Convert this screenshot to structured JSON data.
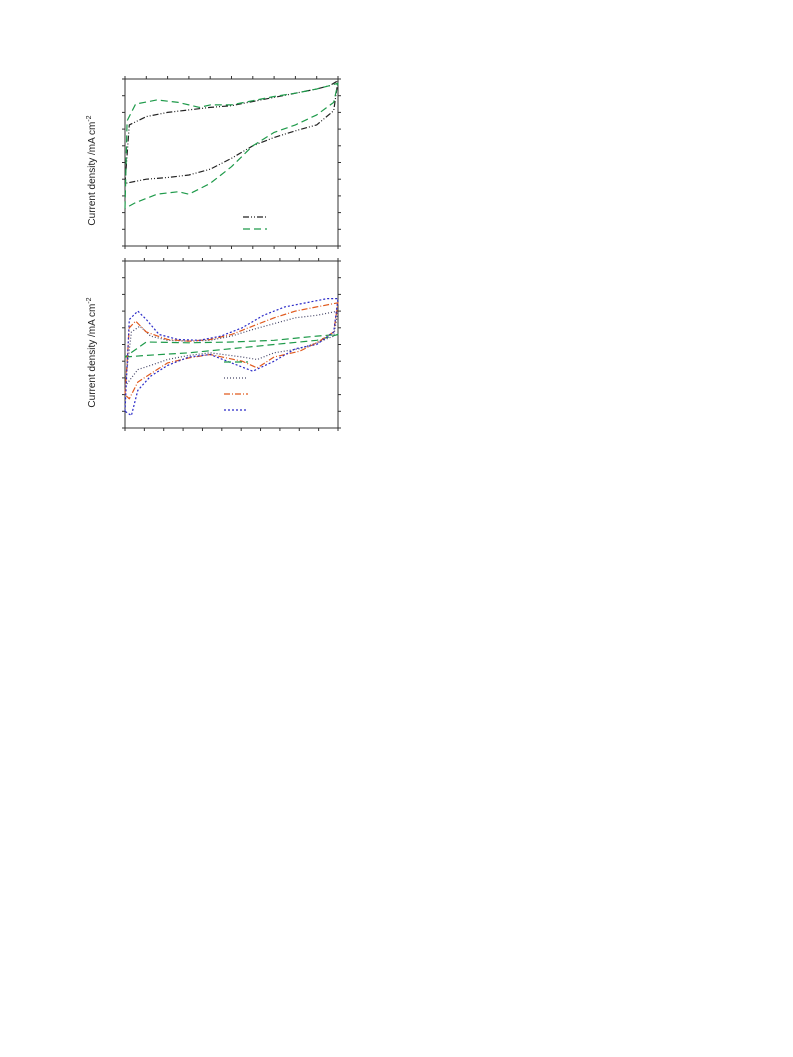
{
  "chart_data": [
    {
      "type": "line",
      "title": "",
      "xlabel": "",
      "ylabel": "Current density /mA cm",
      "ylabel_sup": "-2",
      "xlim": [
        0,
        1
      ],
      "ylim": [
        -1,
        1
      ],
      "x_ticks": 10,
      "y_ticks": 10,
      "grid": false,
      "legend_position": "bottom-right",
      "series": [
        {
          "color": "#222222",
          "dash": "6,2,1,2,1,2",
          "x": [
            0.0,
            0.02,
            0.1,
            0.2,
            0.3,
            0.4,
            0.5,
            0.6,
            0.7,
            0.8,
            0.9,
            0.96,
            1.0,
            0.98,
            0.9,
            0.8,
            0.7,
            0.6,
            0.5,
            0.4,
            0.3,
            0.2,
            0.1,
            0.0
          ],
          "y": [
            -0.25,
            0.45,
            0.55,
            0.6,
            0.63,
            0.66,
            0.68,
            0.73,
            0.78,
            0.83,
            0.88,
            0.92,
            0.98,
            0.62,
            0.45,
            0.38,
            0.3,
            0.2,
            0.05,
            -0.08,
            -0.15,
            -0.18,
            -0.2,
            -0.25
          ]
        },
        {
          "color": "#1e9a4a",
          "dash": "7,4",
          "x": [
            0.0,
            0.01,
            0.05,
            0.15,
            0.25,
            0.35,
            0.4,
            0.5,
            0.6,
            0.7,
            0.8,
            0.9,
            0.96,
            1.0,
            0.98,
            0.9,
            0.8,
            0.7,
            0.6,
            0.5,
            0.4,
            0.3,
            0.25,
            0.15,
            0.05,
            0.0
          ],
          "y": [
            -0.55,
            0.5,
            0.7,
            0.75,
            0.72,
            0.66,
            0.69,
            0.69,
            0.74,
            0.79,
            0.83,
            0.88,
            0.92,
            0.95,
            0.72,
            0.57,
            0.45,
            0.36,
            0.2,
            -0.05,
            -0.25,
            -0.38,
            -0.35,
            -0.38,
            -0.48,
            -0.55
          ]
        }
      ]
    },
    {
      "type": "line",
      "title": "",
      "xlabel": "",
      "ylabel": "Current density /mA cm",
      "ylabel_sup": "-2",
      "xlim": [
        0,
        1
      ],
      "ylim": [
        -1,
        1
      ],
      "x_ticks": 11,
      "y_ticks": 10,
      "grid": false,
      "legend_position": "bottom-right",
      "series": [
        {
          "color": "#1e9a4a",
          "dash": "7,4",
          "x": [
            0.0,
            0.1,
            0.3,
            0.5,
            0.7,
            0.9,
            1.0,
            0.9,
            0.7,
            0.5,
            0.3,
            0.1,
            0.0
          ],
          "y": [
            -0.15,
            -0.13,
            -0.1,
            -0.05,
            0.0,
            0.05,
            0.12,
            0.1,
            0.05,
            0.03,
            0.02,
            0.03,
            -0.15
          ]
        },
        {
          "color": "#444466",
          "dash": "1,2",
          "x": [
            0.0,
            0.03,
            0.07,
            0.12,
            0.2,
            0.3,
            0.4,
            0.5,
            0.6,
            0.7,
            0.8,
            0.9,
            1.0,
            0.98,
            0.9,
            0.82,
            0.7,
            0.62,
            0.55,
            0.4,
            0.3,
            0.2,
            0.12,
            0.06,
            0.03,
            0.0
          ],
          "y": [
            -0.5,
            0.15,
            0.22,
            0.1,
            0.05,
            0.04,
            0.05,
            0.1,
            0.18,
            0.25,
            0.32,
            0.35,
            0.4,
            0.1,
            0.02,
            -0.05,
            -0.1,
            -0.18,
            -0.15,
            -0.1,
            -0.13,
            -0.18,
            -0.25,
            -0.3,
            -0.4,
            -0.5
          ]
        },
        {
          "color": "#e05a1e",
          "dash": "6,2,1,2",
          "x": [
            0.0,
            0.02,
            0.05,
            0.1,
            0.2,
            0.3,
            0.4,
            0.5,
            0.6,
            0.7,
            0.8,
            0.9,
            1.0,
            0.98,
            0.9,
            0.82,
            0.7,
            0.62,
            0.55,
            0.4,
            0.3,
            0.2,
            0.12,
            0.06,
            0.02,
            0.0
          ],
          "y": [
            -0.6,
            0.2,
            0.28,
            0.15,
            0.06,
            0.04,
            0.06,
            0.12,
            0.22,
            0.32,
            0.4,
            0.45,
            0.5,
            0.15,
            0.02,
            -0.08,
            -0.15,
            -0.28,
            -0.2,
            -0.12,
            -0.16,
            -0.22,
            -0.35,
            -0.45,
            -0.65,
            -0.6
          ]
        },
        {
          "color": "#2a2ac8",
          "dash": "2,2",
          "x": [
            0.0,
            0.02,
            0.06,
            0.1,
            0.16,
            0.25,
            0.35,
            0.45,
            0.55,
            0.65,
            0.75,
            0.85,
            0.95,
            1.0,
            0.98,
            0.9,
            0.8,
            0.7,
            0.6,
            0.5,
            0.4,
            0.3,
            0.2,
            0.12,
            0.06,
            0.03,
            0.0
          ],
          "y": [
            -0.8,
            0.3,
            0.4,
            0.3,
            0.12,
            0.06,
            0.05,
            0.1,
            0.2,
            0.35,
            0.45,
            0.5,
            0.55,
            0.55,
            0.15,
            0.0,
            -0.05,
            -0.2,
            -0.32,
            -0.22,
            -0.12,
            -0.15,
            -0.25,
            -0.38,
            -0.55,
            -0.85,
            -0.8
          ]
        }
      ]
    }
  ]
}
